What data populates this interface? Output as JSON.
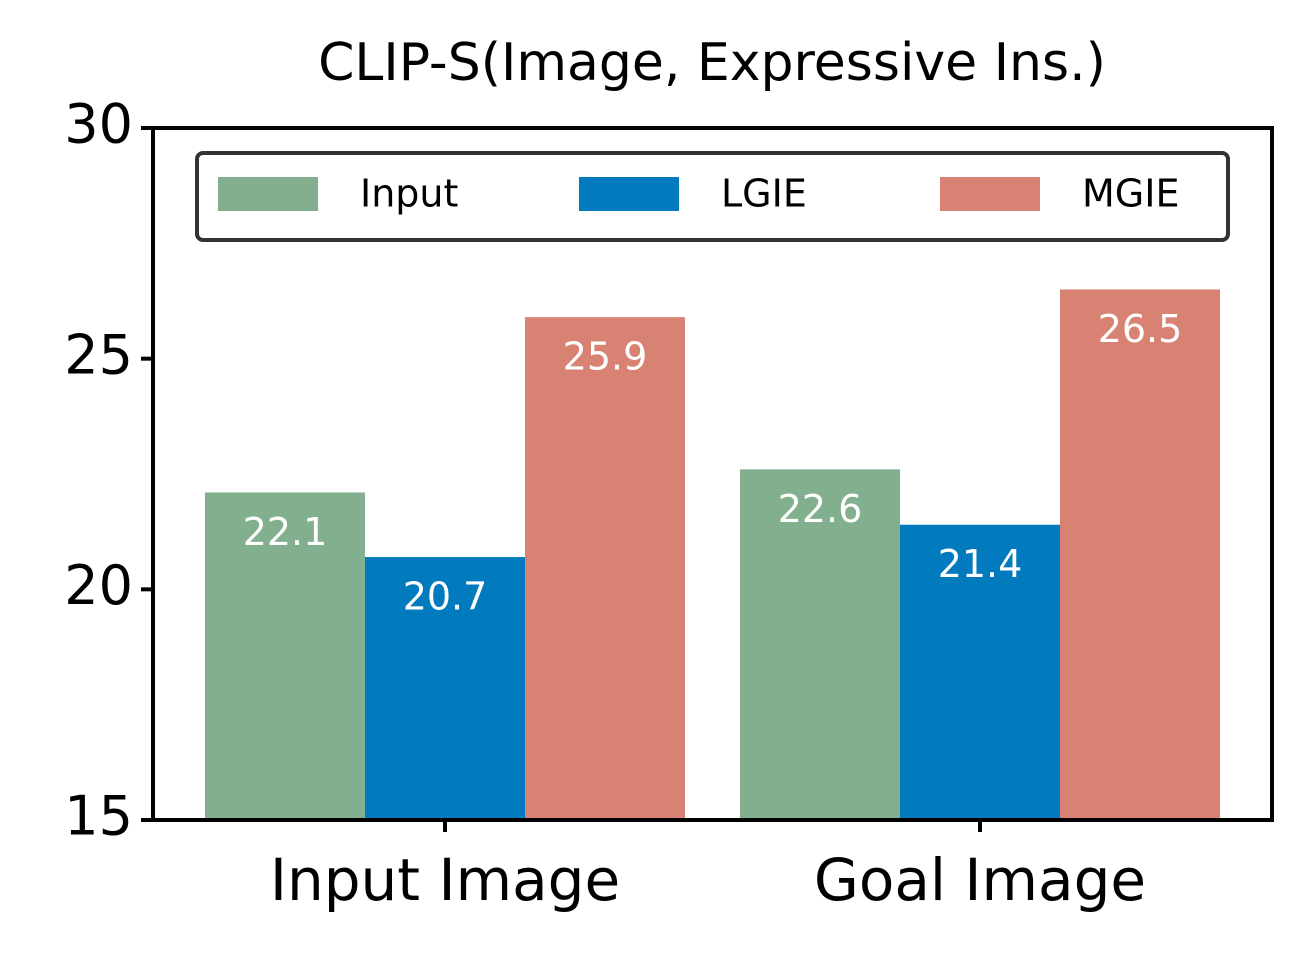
{
  "chart_data": {
    "type": "bar",
    "title": "CLIP-S(Image, Expressive Ins.)",
    "categories": [
      "Input Image",
      "Goal Image"
    ],
    "series": [
      {
        "name": "Input",
        "color": "#82b08f",
        "values": [
          22.1,
          22.6
        ]
      },
      {
        "name": "LGIE",
        "color": "#017bbd",
        "values": [
          20.7,
          21.4
        ]
      },
      {
        "name": "MGIE",
        "color": "#d88274",
        "values": [
          25.9,
          26.5
        ]
      }
    ],
    "ylim": [
      15,
      30
    ],
    "yticks": [
      15,
      20,
      25,
      30
    ],
    "legend": "upper center",
    "value_label_color": "#ffffff"
  }
}
